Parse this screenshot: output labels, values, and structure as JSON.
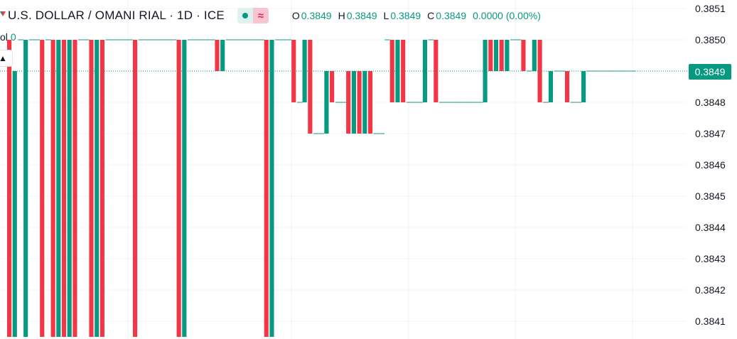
{
  "header": {
    "symbol_title": "U.S. DOLLAR / OMANI RIAL · 1D · ICE",
    "market_status_icon": "market-open-dot-icon",
    "delayed_icon": "≈",
    "ohlc": {
      "o_label": "O",
      "o_value": "0.3849",
      "h_label": "H",
      "h_value": "0.3849",
      "l_label": "L",
      "l_value": "0.3849",
      "c_label": "C",
      "c_value": "0.3849",
      "change": "0.0000 (0.00%)"
    },
    "vol_label": "ol",
    "vol_value": "0",
    "collapse_icon": "chevron-up-icon"
  },
  "price_axis": {
    "current_price_label": "0.3849"
  },
  "colors": {
    "up": "#089981",
    "down": "#f23645",
    "grid": "#f0f3fa",
    "text": "#131722"
  },
  "chart_data": {
    "type": "candlestick",
    "symbol": "U.S. DOLLAR / OMANI RIAL",
    "interval": "1D",
    "exchange": "ICE",
    "y_ticks": [
      "0.3851",
      "0.3850",
      "0.3849",
      "0.3848",
      "0.3847",
      "0.3846",
      "0.3845",
      "0.3844",
      "0.3843",
      "0.3842",
      "0.3841"
    ],
    "ylim": [
      0.38405,
      0.38515
    ],
    "current_price": 0.3849,
    "bars": [
      {
        "o": 0.385,
        "c": 0.384,
        "dir": "down"
      },
      {
        "o": 0.384,
        "c": 0.3849,
        "dir": "up"
      },
      {
        "o": 0.385,
        "c": 0.385,
        "dir": "flat"
      },
      {
        "o": 0.384,
        "c": 0.385,
        "dir": "up"
      },
      {
        "o": 0.385,
        "c": 0.385,
        "dir": "flat"
      },
      {
        "o": 0.385,
        "c": 0.385,
        "dir": "flat"
      },
      {
        "o": 0.385,
        "c": 0.384,
        "dir": "down"
      },
      {
        "o": 0.385,
        "c": 0.385,
        "dir": "flat"
      },
      {
        "o": 0.385,
        "c": 0.384,
        "dir": "down"
      },
      {
        "o": 0.384,
        "c": 0.385,
        "dir": "up"
      },
      {
        "o": 0.385,
        "c": 0.384,
        "dir": "down"
      },
      {
        "o": 0.384,
        "c": 0.385,
        "dir": "up"
      },
      {
        "o": 0.385,
        "c": 0.384,
        "dir": "down"
      },
      {
        "o": 0.385,
        "c": 0.385,
        "dir": "flat"
      },
      {
        "o": 0.385,
        "c": 0.385,
        "dir": "flat"
      },
      {
        "o": 0.385,
        "c": 0.384,
        "dir": "down"
      },
      {
        "o": 0.384,
        "c": 0.385,
        "dir": "up"
      },
      {
        "o": 0.385,
        "c": 0.384,
        "dir": "down"
      },
      {
        "o": 0.385,
        "c": 0.385,
        "dir": "flat"
      },
      {
        "o": 0.385,
        "c": 0.385,
        "dir": "flat"
      },
      {
        "o": 0.385,
        "c": 0.385,
        "dir": "flat"
      },
      {
        "o": 0.385,
        "c": 0.385,
        "dir": "flat"
      },
      {
        "o": 0.385,
        "c": 0.385,
        "dir": "flat"
      },
      {
        "o": 0.385,
        "c": 0.384,
        "dir": "down"
      },
      {
        "o": 0.385,
        "c": 0.385,
        "dir": "flat"
      },
      {
        "o": 0.385,
        "c": 0.385,
        "dir": "flat"
      },
      {
        "o": 0.385,
        "c": 0.385,
        "dir": "flat"
      },
      {
        "o": 0.385,
        "c": 0.385,
        "dir": "flat"
      },
      {
        "o": 0.385,
        "c": 0.385,
        "dir": "flat"
      },
      {
        "o": 0.385,
        "c": 0.385,
        "dir": "flat"
      },
      {
        "o": 0.385,
        "c": 0.385,
        "dir": "flat"
      },
      {
        "o": 0.385,
        "c": 0.384,
        "dir": "down"
      },
      {
        "o": 0.384,
        "c": 0.385,
        "dir": "up"
      },
      {
        "o": 0.385,
        "c": 0.385,
        "dir": "flat"
      },
      {
        "o": 0.385,
        "c": 0.385,
        "dir": "flat"
      },
      {
        "o": 0.385,
        "c": 0.385,
        "dir": "flat"
      },
      {
        "o": 0.385,
        "c": 0.385,
        "dir": "flat"
      },
      {
        "o": 0.385,
        "c": 0.385,
        "dir": "flat"
      },
      {
        "o": 0.385,
        "c": 0.3849,
        "dir": "down"
      },
      {
        "o": 0.3849,
        "c": 0.385,
        "dir": "up"
      },
      {
        "o": 0.385,
        "c": 0.385,
        "dir": "flat"
      },
      {
        "o": 0.385,
        "c": 0.385,
        "dir": "flat"
      },
      {
        "o": 0.385,
        "c": 0.385,
        "dir": "flat"
      },
      {
        "o": 0.385,
        "c": 0.385,
        "dir": "flat"
      },
      {
        "o": 0.385,
        "c": 0.385,
        "dir": "flat"
      },
      {
        "o": 0.385,
        "c": 0.385,
        "dir": "flat"
      },
      {
        "o": 0.385,
        "c": 0.385,
        "dir": "flat"
      },
      {
        "o": 0.385,
        "c": 0.384,
        "dir": "down"
      },
      {
        "o": 0.384,
        "c": 0.385,
        "dir": "up"
      },
      {
        "o": 0.385,
        "c": 0.385,
        "dir": "flat"
      },
      {
        "o": 0.385,
        "c": 0.385,
        "dir": "flat"
      },
      {
        "o": 0.385,
        "c": 0.385,
        "dir": "flat"
      },
      {
        "o": 0.385,
        "c": 0.3848,
        "dir": "down"
      },
      {
        "o": 0.3848,
        "c": 0.3848,
        "dir": "flat"
      },
      {
        "o": 0.3848,
        "c": 0.385,
        "dir": "up"
      },
      {
        "o": 0.385,
        "c": 0.3847,
        "dir": "down"
      },
      {
        "o": 0.3847,
        "c": 0.3847,
        "dir": "flat"
      },
      {
        "o": 0.3847,
        "c": 0.3847,
        "dir": "flat"
      },
      {
        "o": 0.3847,
        "c": 0.3849,
        "dir": "up"
      },
      {
        "o": 0.3849,
        "c": 0.3848,
        "dir": "down"
      },
      {
        "o": 0.3848,
        "c": 0.3848,
        "dir": "flat"
      },
      {
        "o": 0.3848,
        "c": 0.3848,
        "dir": "flat"
      },
      {
        "o": 0.3849,
        "c": 0.3847,
        "dir": "down"
      },
      {
        "o": 0.3847,
        "c": 0.3849,
        "dir": "up"
      },
      {
        "o": 0.3849,
        "c": 0.3847,
        "dir": "down"
      },
      {
        "o": 0.3847,
        "c": 0.3849,
        "dir": "up"
      },
      {
        "o": 0.3849,
        "c": 0.3847,
        "dir": "down"
      },
      {
        "o": 0.3847,
        "c": 0.3847,
        "dir": "flat"
      },
      {
        "o": 0.3847,
        "c": 0.3847,
        "dir": "flat"
      },
      {
        "o": 0.385,
        "c": 0.385,
        "dir": "flat"
      },
      {
        "o": 0.385,
        "c": 0.3848,
        "dir": "down"
      },
      {
        "o": 0.3848,
        "c": 0.385,
        "dir": "up"
      },
      {
        "o": 0.385,
        "c": 0.3848,
        "dir": "down"
      },
      {
        "o": 0.3848,
        "c": 0.3848,
        "dir": "flat"
      },
      {
        "o": 0.3848,
        "c": 0.3848,
        "dir": "flat"
      },
      {
        "o": 0.3848,
        "c": 0.3848,
        "dir": "flat"
      },
      {
        "o": 0.3848,
        "c": 0.385,
        "dir": "up"
      },
      {
        "o": 0.385,
        "c": 0.385,
        "dir": "flat"
      },
      {
        "o": 0.385,
        "c": 0.3848,
        "dir": "down"
      },
      {
        "o": 0.3848,
        "c": 0.3848,
        "dir": "flat"
      },
      {
        "o": 0.3848,
        "c": 0.3848,
        "dir": "flat"
      },
      {
        "o": 0.3848,
        "c": 0.3848,
        "dir": "flat"
      },
      {
        "o": 0.3848,
        "c": 0.3848,
        "dir": "flat"
      },
      {
        "o": 0.3848,
        "c": 0.3848,
        "dir": "flat"
      },
      {
        "o": 0.3848,
        "c": 0.3848,
        "dir": "flat"
      },
      {
        "o": 0.3848,
        "c": 0.3848,
        "dir": "flat"
      },
      {
        "o": 0.3848,
        "c": 0.3848,
        "dir": "flat"
      },
      {
        "o": 0.3848,
        "c": 0.385,
        "dir": "up"
      },
      {
        "o": 0.385,
        "c": 0.3849,
        "dir": "down"
      },
      {
        "o": 0.3849,
        "c": 0.385,
        "dir": "up"
      },
      {
        "o": 0.385,
        "c": 0.3849,
        "dir": "down"
      },
      {
        "o": 0.3849,
        "c": 0.385,
        "dir": "up"
      },
      {
        "o": 0.385,
        "c": 0.385,
        "dir": "flat"
      },
      {
        "o": 0.385,
        "c": 0.385,
        "dir": "flat"
      },
      {
        "o": 0.385,
        "c": 0.3849,
        "dir": "down"
      },
      {
        "o": 0.3849,
        "c": 0.3849,
        "dir": "flat"
      },
      {
        "o": 0.3849,
        "c": 0.385,
        "dir": "up"
      },
      {
        "o": 0.385,
        "c": 0.3848,
        "dir": "down"
      },
      {
        "o": 0.3848,
        "c": 0.3848,
        "dir": "flat"
      },
      {
        "o": 0.3848,
        "c": 0.3849,
        "dir": "up"
      },
      {
        "o": 0.3849,
        "c": 0.3849,
        "dir": "flat"
      },
      {
        "o": 0.3849,
        "c": 0.3849,
        "dir": "flat"
      },
      {
        "o": 0.3849,
        "c": 0.3848,
        "dir": "down"
      },
      {
        "o": 0.3848,
        "c": 0.3848,
        "dir": "flat"
      },
      {
        "o": 0.3848,
        "c": 0.3848,
        "dir": "flat"
      },
      {
        "o": 0.3848,
        "c": 0.3849,
        "dir": "up"
      },
      {
        "o": 0.3849,
        "c": 0.3849,
        "dir": "flat"
      },
      {
        "o": 0.3849,
        "c": 0.3849,
        "dir": "flat"
      },
      {
        "o": 0.3849,
        "c": 0.3849,
        "dir": "flat"
      },
      {
        "o": 0.3849,
        "c": 0.3849,
        "dir": "flat"
      },
      {
        "o": 0.3849,
        "c": 0.3849,
        "dir": "flat"
      },
      {
        "o": 0.3849,
        "c": 0.3849,
        "dir": "flat"
      },
      {
        "o": 0.3849,
        "c": 0.3849,
        "dir": "flat"
      },
      {
        "o": 0.3849,
        "c": 0.3849,
        "dir": "flat"
      },
      {
        "o": 0.3849,
        "c": 0.3849,
        "dir": "flat"
      }
    ]
  }
}
